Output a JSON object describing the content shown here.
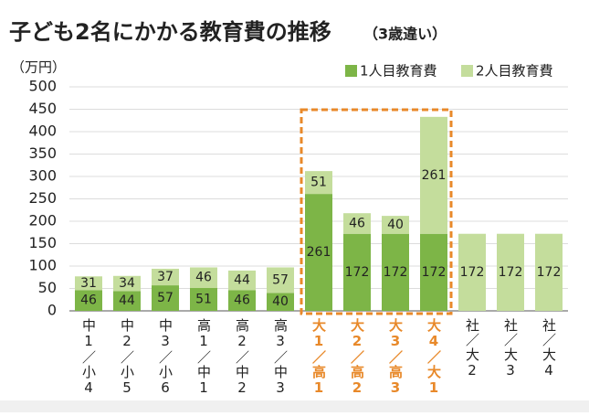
{
  "chart_data": {
    "type": "stacked_bar",
    "title": "子ども2名にかかる教育費の推移",
    "subtitle": "（3歳違い）",
    "y_label": "（万円）",
    "categories": [
      "中1／小4",
      "中2／小5",
      "中3／小6",
      "高1／中1",
      "高2／中2",
      "高3／中3",
      "大1／高1",
      "大2／高2",
      "大3／高3",
      "大4／大1",
      "社／大2",
      "社／大3",
      "社／大4"
    ],
    "series": [
      {
        "name": "1人目教育費",
        "color": "#7db547",
        "values": [
          46,
          44,
          57,
          51,
          46,
          40,
          261,
          172,
          172,
          172,
          null,
          null,
          null
        ]
      },
      {
        "name": "2人目教育費",
        "color": "#c4dd9c",
        "values": [
          31,
          34,
          37,
          46,
          44,
          57,
          51,
          46,
          40,
          261,
          172,
          172,
          172
        ]
      }
    ],
    "ylim": [
      0,
      500
    ],
    "yticks": [
      0,
      50,
      100,
      150,
      200,
      250,
      300,
      350,
      400,
      450,
      500
    ],
    "grid": true,
    "highlight": {
      "from": 6,
      "to": 9,
      "color": "#e8892a"
    }
  }
}
